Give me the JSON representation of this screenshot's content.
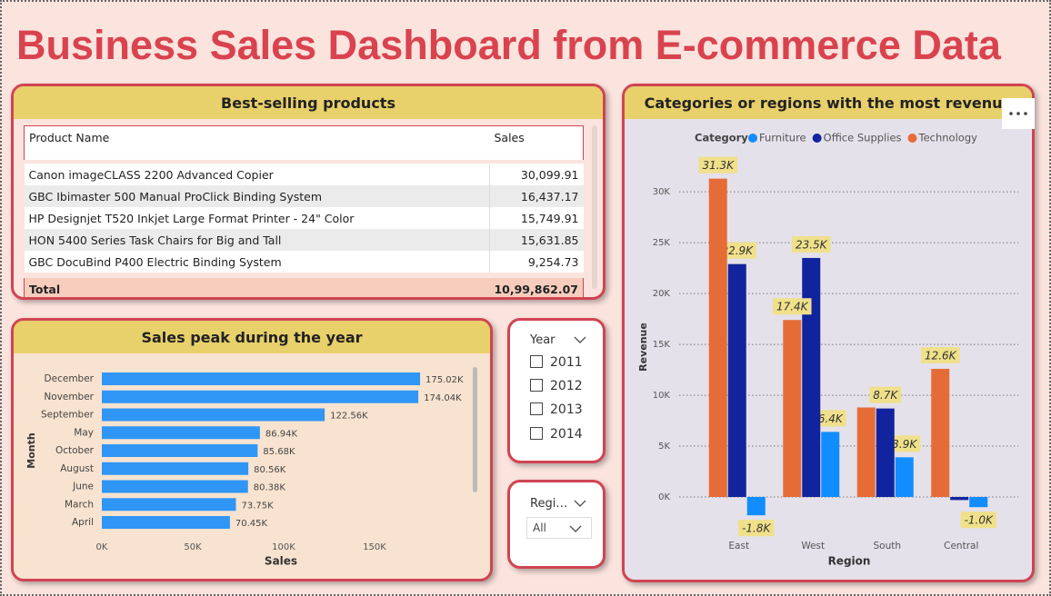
{
  "title": "Business Sales Dashboard from E-commerce Data",
  "table": {
    "title": "Best-selling products",
    "columns": [
      "Product Name",
      "Sales"
    ],
    "rows": [
      [
        "Canon imageCLASS 2200 Advanced Copier",
        "30,099.91"
      ],
      [
        "GBC Ibimaster 500 Manual ProClick Binding System",
        "16,437.17"
      ],
      [
        "HP Designjet T520 Inkjet Large Format Printer - 24\" Color",
        "15,749.91"
      ],
      [
        "HON 5400 Series Task Chairs for Big and Tall",
        "15,631.85"
      ],
      [
        "GBC DocuBind P400 Electric Binding System",
        "9,254.73"
      ]
    ],
    "total": [
      "Total",
      "10,99,862.07"
    ]
  },
  "chart_data": [
    {
      "type": "bar",
      "orientation": "horizontal",
      "title": "Sales peak during the year",
      "x_label": "Sales",
      "y_label": "Month",
      "categories": [
        "December",
        "November",
        "September",
        "May",
        "October",
        "August",
        "June",
        "March",
        "April"
      ],
      "values": [
        175020,
        174040,
        122560,
        86940,
        85680,
        80560,
        80380,
        73750,
        70450
      ],
      "value_labels": [
        "175.02K",
        "174.04K",
        "122.56K",
        "86.94K",
        "85.68K",
        "80.56K",
        "80.38K",
        "73.75K",
        "70.45K"
      ],
      "color": "#2f96f5",
      "xlim": [
        0,
        200000
      ],
      "xticks": [
        {
          "value": 0,
          "label": "0K"
        },
        {
          "value": 50000,
          "label": "50K"
        },
        {
          "value": 100000,
          "label": "100K"
        },
        {
          "value": 150000,
          "label": "150K"
        }
      ]
    },
    {
      "type": "bar",
      "orientation": "vertical",
      "title": "Categories or regions with the most revenue",
      "x_label": "Region",
      "y_label": "Revenue",
      "legend_title": "Category",
      "legend": "top",
      "grid": true,
      "categories": [
        "East",
        "West",
        "South",
        "Central"
      ],
      "series": [
        {
          "name": "Furniture",
          "color": "#118dff",
          "values": [
            -1800,
            6400,
            3900,
            -1000
          ],
          "value_labels": [
            "-1.8K",
            "6.4K",
            "3.9K",
            "-1.0K"
          ]
        },
        {
          "name": "Office Supplies",
          "color": "#12239e",
          "values": [
            22900,
            23500,
            8700,
            -300
          ],
          "value_labels": [
            "22.9K",
            "23.5K",
            "8.7K",
            null
          ]
        },
        {
          "name": "Technology",
          "color": "#e66c37",
          "values": [
            31300,
            17400,
            8800,
            12600
          ],
          "value_labels": [
            "31.3K",
            "17.4K",
            null,
            "12.6K"
          ]
        }
      ],
      "ylim": [
        -2500,
        33500
      ],
      "yticks": [
        {
          "value": 0,
          "label": "0K"
        },
        {
          "value": 5000,
          "label": "5K"
        },
        {
          "value": 10000,
          "label": "10K"
        },
        {
          "value": 15000,
          "label": "15K"
        },
        {
          "value": 20000,
          "label": "20K"
        },
        {
          "value": 25000,
          "label": "25K"
        },
        {
          "value": 30000,
          "label": "30K"
        }
      ]
    }
  ],
  "slicers": [
    {
      "title": "Year",
      "items": [
        "2011",
        "2012",
        "2013",
        "2014"
      ]
    },
    {
      "title": "Regi…",
      "items": [
        "All"
      ]
    }
  ]
}
